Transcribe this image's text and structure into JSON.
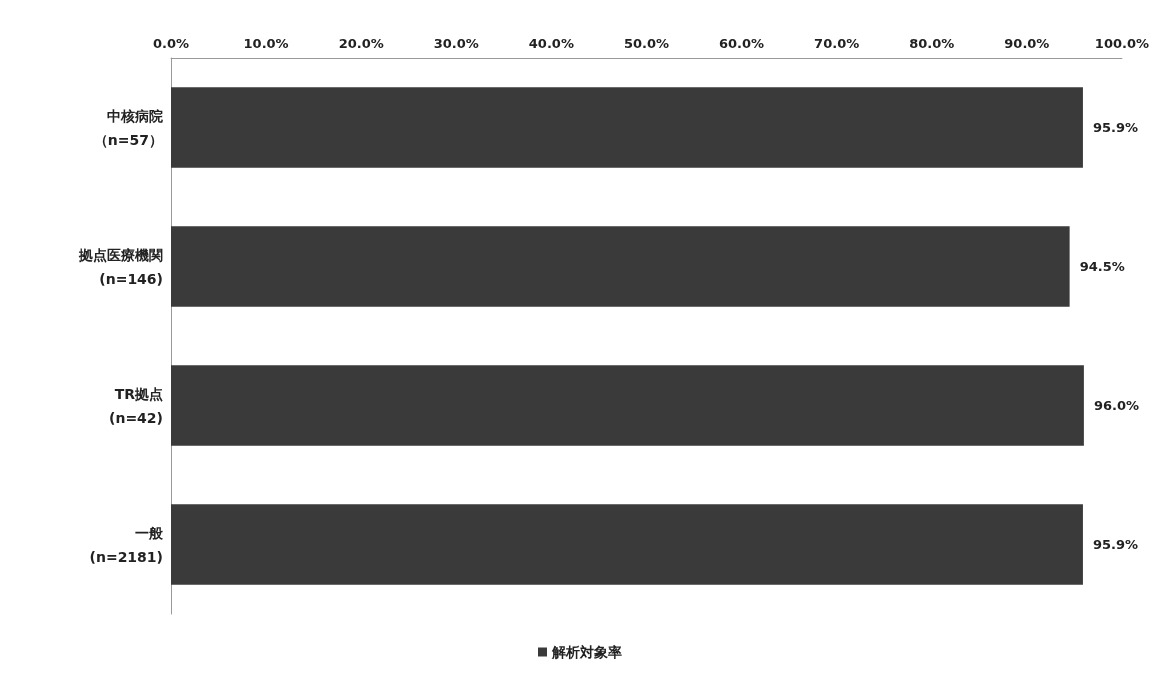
{
  "chart_data": {
    "type": "bar",
    "orientation": "horizontal",
    "categories": [
      "中核病院（n=57）",
      "拠点医療機関(n=146)",
      "TR拠点(n=42)",
      "一般(n=2181)"
    ],
    "series": [
      {
        "name": "解析対象率",
        "color": "#3a3a3a",
        "values": [
          95.9,
          94.5,
          96.0,
          95.9
        ],
        "value_labels": [
          "95.9%",
          "94.5%",
          "96.0%",
          "95.9%"
        ]
      }
    ],
    "xlim": [
      0,
      100
    ],
    "xticks": [
      {
        "value": 0,
        "label": "0.0%"
      },
      {
        "value": 10,
        "label": "10.0%"
      },
      {
        "value": 20,
        "label": "20.0%"
      },
      {
        "value": 30,
        "label": "30.0%"
      },
      {
        "value": 40,
        "label": "40.0%"
      },
      {
        "value": 50,
        "label": "50.0%"
      },
      {
        "value": 60,
        "label": "60.0%"
      },
      {
        "value": 70,
        "label": "70.0%"
      },
      {
        "value": 80,
        "label": "80.0%"
      },
      {
        "value": 90,
        "label": "90.0%"
      },
      {
        "value": 100,
        "label": "100.0%"
      }
    ],
    "grid": false,
    "legend": "bottom"
  }
}
